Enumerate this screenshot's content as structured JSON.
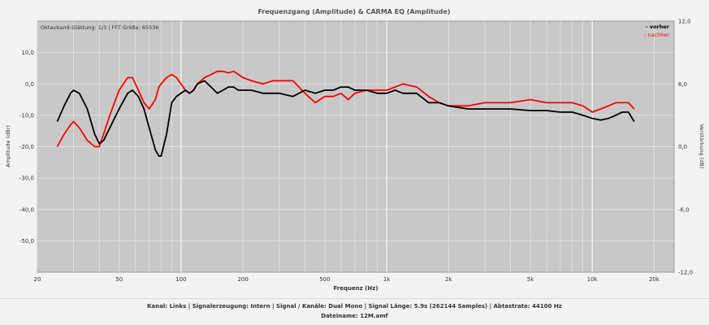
{
  "chart_data": {
    "type": "line",
    "title": "Frequenzgang (Amplitude) & CARMA EQ (Amplitude)",
    "subtitle": "Oktavband-Glättung: 1/3 | FFT Größe: 65536",
    "xlabel": "Frequenz (Hz)",
    "ylabel": "Amplitude (dBr)",
    "ylabel_right": "Verstärkung (dB)",
    "x_scale": "log",
    "xlim": [
      20,
      25000
    ],
    "ylim": [
      -60,
      20
    ],
    "ylim_right": [
      -12,
      12
    ],
    "x_ticks": [
      20,
      50,
      100,
      200,
      500,
      1000,
      2000,
      5000,
      10000,
      20000
    ],
    "x_tick_labels": [
      "20",
      "50",
      "100",
      "200",
      "500",
      "1k",
      "2k",
      "5k",
      "10k",
      "20k"
    ],
    "y_ticks": [
      10,
      0,
      -10,
      -20,
      -30,
      -40,
      -50
    ],
    "y_tick_labels": [
      "10,0",
      "0,0",
      "-10,0",
      "-20,0",
      "-30,0",
      "-40,0",
      "-50,0"
    ],
    "y_ticks_right": [
      12,
      6,
      0,
      -6,
      -12
    ],
    "y_tick_labels_right": [
      "12,0",
      "6,0",
      "0,0",
      "-6,0",
      "-12,0"
    ],
    "grid": true,
    "legend_position": "top-right",
    "series": [
      {
        "name": "- vorher",
        "color": "#000000",
        "x": [
          25,
          27,
          29,
          30,
          32,
          35,
          38,
          40,
          42,
          45,
          50,
          55,
          58,
          62,
          66,
          70,
          75,
          78,
          80,
          85,
          90,
          95,
          100,
          105,
          110,
          115,
          120,
          130,
          140,
          150,
          160,
          170,
          180,
          190,
          200,
          220,
          250,
          280,
          300,
          350,
          400,
          450,
          500,
          550,
          600,
          650,
          700,
          800,
          900,
          1000,
          1100,
          1200,
          1400,
          1600,
          1800,
          2000,
          2500,
          3000,
          4000,
          5000,
          6000,
          7000,
          8000,
          9000,
          10000,
          11000,
          12000,
          13000,
          14000,
          15000,
          16000
        ],
        "values": [
          -12,
          -7,
          -3,
          -2,
          -3,
          -8,
          -16,
          -19,
          -18,
          -14,
          -8,
          -3,
          -2,
          -4,
          -8,
          -14,
          -21,
          -23,
          -23,
          -16,
          -6,
          -4,
          -3,
          -2,
          -3,
          -2,
          0,
          1,
          -1,
          -3,
          -2,
          -1,
          -1,
          -2,
          -2,
          -2,
          -3,
          -3,
          -3,
          -4,
          -2,
          -3,
          -2,
          -2,
          -1,
          -1,
          -2,
          -2,
          -3,
          -3,
          -2,
          -3,
          -3,
          -6,
          -6,
          -7,
          -8,
          -8,
          -8,
          -8.5,
          -8.5,
          -9,
          -9,
          -10,
          -11,
          -11.5,
          -11,
          -10,
          -9,
          -9,
          -12
        ]
      },
      {
        "name": "- nachher",
        "color": "#ff0000",
        "x": [
          25,
          27,
          29,
          30,
          32,
          35,
          38,
          40,
          42,
          45,
          50,
          55,
          58,
          62,
          66,
          70,
          75,
          78,
          80,
          85,
          90,
          95,
          100,
          105,
          110,
          115,
          120,
          130,
          140,
          150,
          160,
          170,
          180,
          190,
          200,
          220,
          250,
          280,
          300,
          350,
          400,
          450,
          500,
          550,
          600,
          650,
          700,
          800,
          900,
          1000,
          1100,
          1200,
          1400,
          1600,
          1800,
          2000,
          2500,
          3000,
          4000,
          5000,
          6000,
          7000,
          8000,
          9000,
          10000,
          11000,
          12000,
          13000,
          14000,
          15000,
          16000
        ],
        "values": [
          -20,
          -16,
          -13,
          -12,
          -14,
          -18,
          -20,
          -20,
          -16,
          -10,
          -2,
          2,
          2,
          -2,
          -6,
          -8,
          -5,
          -1,
          0,
          2,
          3,
          2,
          0,
          -2,
          -3,
          -2,
          0,
          2,
          3,
          4,
          4,
          3.5,
          4,
          3,
          2,
          1,
          0,
          1,
          1,
          1,
          -3,
          -6,
          -4,
          -4,
          -3,
          -5,
          -3,
          -2,
          -2,
          -2,
          -1,
          0,
          -1,
          -4,
          -6,
          -7,
          -7,
          -6,
          -6,
          -5,
          -6,
          -6,
          -6,
          -7,
          -9,
          -8,
          -7,
          -6,
          -6,
          -6,
          -8
        ]
      }
    ]
  },
  "footer": {
    "line1": "Kanal: Links  |  Signalerzeugung: Intern  |  Signal / Kanäle: Dual Mono  |  Signal Länge: 5.9s (262144 Samples)  |  Abtastrate: 44100 Hz",
    "line2": "Dateiname: 12M.amf"
  }
}
